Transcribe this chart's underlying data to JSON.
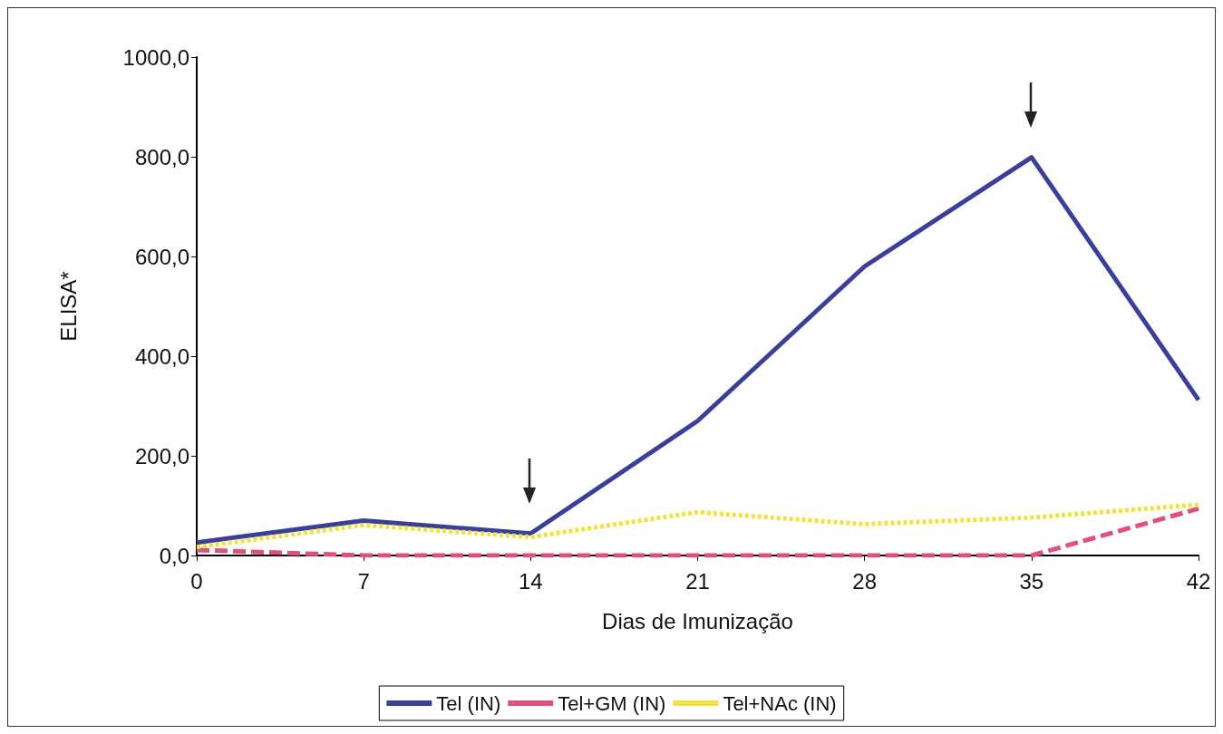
{
  "chart_data": {
    "type": "line",
    "xlabel": "Dias de Imunização",
    "ylabel": "ELISA*",
    "categories": [
      "0",
      "7",
      "14",
      "21",
      "28",
      "35",
      "42"
    ],
    "series": [
      {
        "name": "Tel (IN)",
        "color": "#3b3f9c",
        "values": [
          26,
          70,
          44,
          270,
          580,
          799,
          312
        ],
        "line_style": "solid"
      },
      {
        "name": "Tel+GM (IN)",
        "color": "#e0507a",
        "values": [
          11,
          0,
          0,
          0,
          0,
          0,
          94
        ],
        "line_style": "dashed"
      },
      {
        "name": "Tel+NAc (IN)",
        "color": "#f2e33c",
        "values": [
          17,
          61,
          37,
          87,
          63,
          76,
          102
        ],
        "line_style": "dotted"
      }
    ],
    "ylim": [
      0,
      1000
    ],
    "yticks": [
      {
        "value": 0,
        "label": "0,0"
      },
      {
        "value": 200,
        "label": "200,0"
      },
      {
        "value": 400,
        "label": "400,0"
      },
      {
        "value": 600,
        "label": "600,0"
      },
      {
        "value": 800,
        "label": "800,0"
      },
      {
        "value": 1000,
        "label": "1000,0"
      }
    ],
    "grid": false,
    "legend": "bottom",
    "marker": "none"
  }
}
